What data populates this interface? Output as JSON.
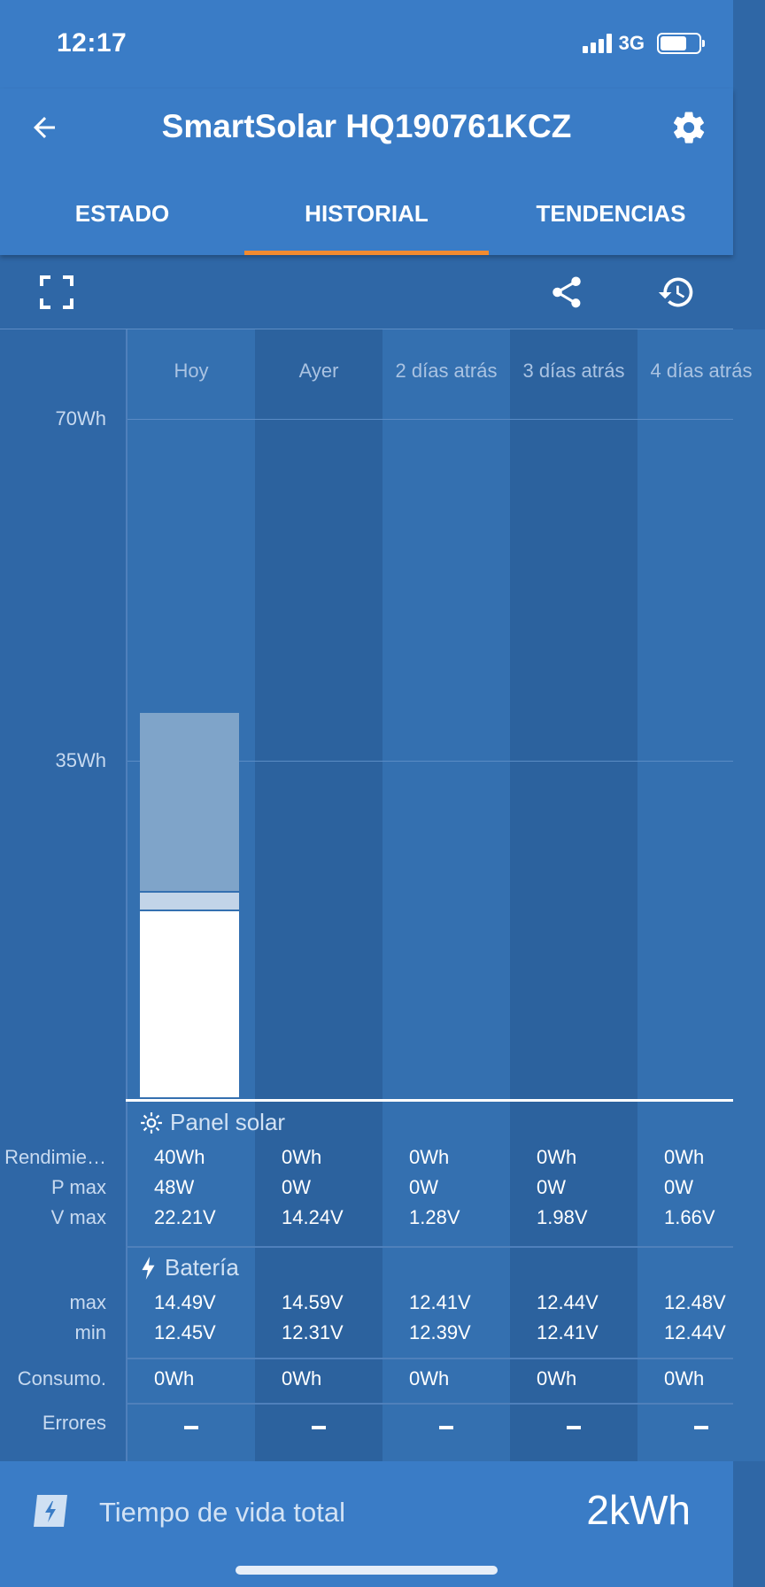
{
  "status_bar": {
    "time": "12:17",
    "network": "3G",
    "battery_fraction": 0.7
  },
  "header": {
    "title": "SmartSolar HQ190761KCZ"
  },
  "tabs": [
    {
      "label": "ESTADO",
      "active": false
    },
    {
      "label": "HISTORIAL",
      "active": true
    },
    {
      "label": "TENDENCIAS",
      "active": false
    }
  ],
  "toolbar": {
    "icons": [
      "fullscreen-icon",
      "share-icon",
      "history-icon"
    ]
  },
  "colors": {
    "accent": "#f28b30",
    "appbar": "#3a7cc6",
    "background": "#2f67a6",
    "column_light": "#3470b0",
    "column_dark": "#2c629e",
    "bar_absorption": "#7fa4c9",
    "bar_float": "#c2d4e8",
    "bar_bulk": "#ffffff"
  },
  "chart_data": {
    "type": "bar",
    "categories": [
      "Hoy",
      "Ayer",
      "2 días atrás",
      "3 días atrás",
      "4 días atrás"
    ],
    "y_ticks": [
      "35Wh",
      "70Wh"
    ],
    "ylim": [
      0,
      70
    ],
    "unit": "Wh",
    "stacked_segments": [
      {
        "key": "bulk",
        "color": "#ffffff",
        "values": [
          19.3,
          0,
          0,
          0,
          0
        ]
      },
      {
        "key": "float",
        "color": "#c2d4e8",
        "values": [
          1.9,
          0,
          0,
          0,
          0
        ]
      },
      {
        "key": "absorption",
        "color": "#7fa4c9",
        "values": [
          18.5,
          0,
          0,
          0,
          0
        ]
      }
    ],
    "grid": true
  },
  "panel_solar": {
    "title": "Panel solar",
    "icon": "sun-icon",
    "rows": [
      {
        "label": "Rendimie…",
        "values": [
          "40Wh",
          "0Wh",
          "0Wh",
          "0Wh",
          "0Wh"
        ]
      },
      {
        "label": "P max",
        "values": [
          "48W",
          "0W",
          "0W",
          "0W",
          "0W"
        ]
      },
      {
        "label": "V max",
        "values": [
          "22.21V",
          "14.24V",
          "1.28V",
          "1.98V",
          "1.66V"
        ]
      }
    ]
  },
  "bateria": {
    "title": "Batería",
    "icon": "bolt-icon",
    "rows": [
      {
        "label": "max",
        "values": [
          "14.49V",
          "14.59V",
          "12.41V",
          "12.44V",
          "12.48V"
        ]
      },
      {
        "label": "min",
        "values": [
          "12.45V",
          "12.31V",
          "12.39V",
          "12.41V",
          "12.44V"
        ]
      }
    ]
  },
  "consumo": {
    "label": "Consumo.",
    "values": [
      "0Wh",
      "0Wh",
      "0Wh",
      "0Wh",
      "0Wh"
    ]
  },
  "errores": {
    "label": "Errores",
    "count": 5
  },
  "footer": {
    "label": "Tiempo de vida total",
    "value": "2kWh"
  }
}
